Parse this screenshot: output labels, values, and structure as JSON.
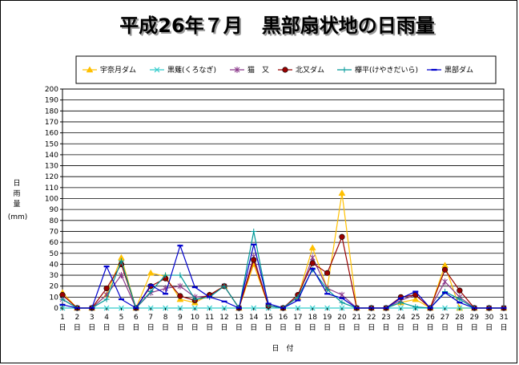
{
  "chart_data": {
    "type": "line",
    "title": "平成26年７月　黒部扇状地の日雨量",
    "ylabel": [
      "日",
      "雨",
      "量",
      "(mm)"
    ],
    "xlabel": "日　付",
    "ylim": [
      0,
      200
    ],
    "ytick_step": 10,
    "x": [
      1,
      2,
      3,
      4,
      5,
      6,
      7,
      8,
      9,
      10,
      11,
      12,
      13,
      14,
      15,
      16,
      17,
      18,
      19,
      20,
      21,
      22,
      23,
      24,
      25,
      26,
      27,
      28,
      29,
      30,
      31
    ],
    "x_suffix": "日",
    "grid": true,
    "legend_position": "top",
    "series": [
      {
        "name": "宇奈月ダム",
        "color": "#ffc000",
        "marker": "triangle",
        "values": [
          14,
          0,
          0,
          12,
          46,
          0,
          32,
          29,
          8,
          5,
          12,
          20,
          0,
          40,
          2,
          0,
          10,
          55,
          18,
          105,
          0,
          0,
          0,
          5,
          8,
          0,
          39,
          0,
          0,
          0,
          0
        ]
      },
      {
        "name": "黒薙(くろなぎ)",
        "color": "#33cccc",
        "marker": "x",
        "values": [
          0,
          0,
          0,
          0,
          0,
          0,
          0,
          0,
          0,
          0,
          0,
          0,
          0,
          0,
          0,
          0,
          0,
          0,
          0,
          0,
          0,
          0,
          0,
          0,
          0,
          0,
          0,
          0,
          0,
          0,
          0
        ]
      },
      {
        "name": "猫　又",
        "color": "#8b3a8b",
        "marker": "star",
        "values": [
          8,
          0,
          0,
          12,
          30,
          0,
          14,
          18,
          20,
          10,
          11,
          20,
          0,
          47,
          2,
          0,
          10,
          46,
          18,
          12,
          0,
          0,
          0,
          7,
          12,
          0,
          24,
          10,
          0,
          0,
          0
        ]
      },
      {
        "name": "北又ダム",
        "color": "#990000",
        "marker": "circle",
        "values": [
          12,
          0,
          0,
          18,
          40,
          0,
          20,
          27,
          11,
          7,
          12,
          20,
          0,
          44,
          2,
          0,
          12,
          41,
          32,
          65,
          0,
          0,
          0,
          10,
          12,
          0,
          35,
          16,
          0,
          0,
          0
        ]
      },
      {
        "name": "欅平(けやきだいら)",
        "color": "#009999",
        "marker": "plus",
        "values": [
          8,
          0,
          0,
          8,
          43,
          0,
          15,
          30,
          30,
          8,
          10,
          20,
          0,
          70,
          2,
          0,
          10,
          35,
          17,
          5,
          0,
          0,
          0,
          5,
          1,
          0,
          15,
          8,
          0,
          0,
          0
        ]
      },
      {
        "name": "黒部ダム",
        "color": "#0000cc",
        "marker": "dash",
        "values": [
          3,
          0,
          0,
          38,
          8,
          0,
          21,
          13,
          57,
          19,
          10,
          6,
          0,
          58,
          4,
          0,
          7,
          36,
          13,
          9,
          0,
          0,
          0,
          9,
          15,
          0,
          14,
          5,
          0,
          0,
          0
        ]
      }
    ]
  }
}
